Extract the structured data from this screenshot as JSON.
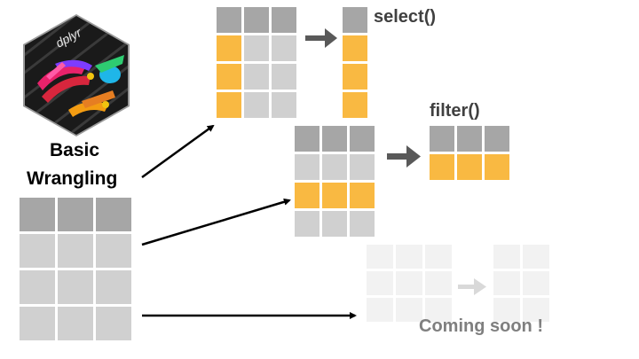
{
  "logo": {
    "text": "dplyr",
    "bg_color": "#1a1a1a",
    "icon": "dplyr-hex-logo-icon"
  },
  "title": {
    "line1": "Basic",
    "line2": "Wrangling"
  },
  "labels": {
    "select": "select()",
    "filter": "filter()",
    "coming_soon": "Coming soon !"
  },
  "colors": {
    "header_gray": "#a6a6a6",
    "cell_gray": "#d0d0d0",
    "highlight_orange": "#f9b942",
    "faded_cell": "#f2f2f2",
    "faded_arrow": "#d9d9d9",
    "dark_arrow": "#595959",
    "label_dark": "#404040",
    "label_faded": "#7f7f7f"
  }
}
